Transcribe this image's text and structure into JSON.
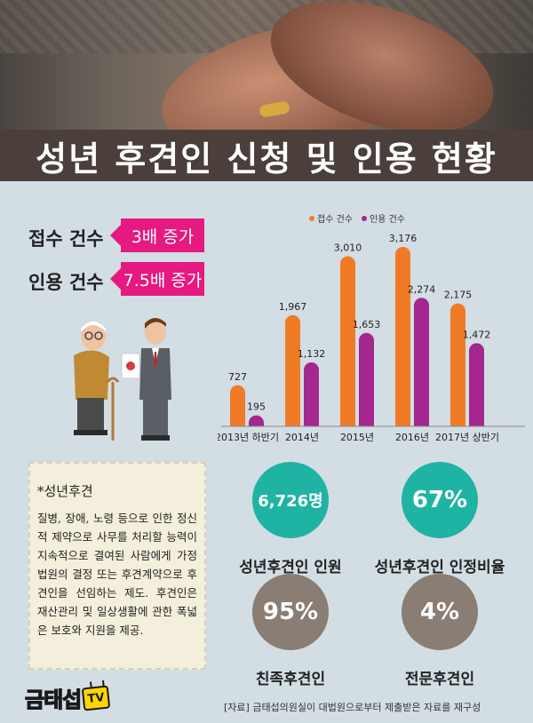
{
  "title": "성년 후견인 신청 및 인용 현황",
  "stats": [
    {
      "label": "접수 건수",
      "value": "3배 증가"
    },
    {
      "label": "인용 건수",
      "value": "7.5배 증가"
    }
  ],
  "colors": {
    "accent": "#e5197f",
    "orange": "#f07b26",
    "purple": "#a3278f",
    "teal": "#1fb3a3",
    "taupe": "#8a7d73",
    "title_bg": "#4a3f3a"
  },
  "chart_data": {
    "type": "bar",
    "categories": [
      "2013년 하반기",
      "2014년",
      "2015년",
      "2016년",
      "2017년 상반기"
    ],
    "series": [
      {
        "name": "접수 건수",
        "values": [
          727,
          1967,
          3010,
          3176,
          2175
        ],
        "labels": [
          "727",
          "1,967",
          "3,010",
          "3,176",
          "2,175"
        ],
        "color": "#f07b26"
      },
      {
        "name": "인용 건수",
        "values": [
          195,
          1132,
          1653,
          2274,
          1472
        ],
        "labels": [
          "195",
          "1,132",
          "1,653",
          "2,274",
          "1,472"
        ],
        "color": "#a3278f"
      }
    ],
    "ylim": [
      0,
      3176
    ],
    "legend": "top"
  },
  "note": {
    "title": "*성년후견",
    "body": "질병, 장애, 노령 등으로 인한 정신적 제약으로 사무를 처리할 능력이 지속적으로 결여된 사람에게 가정법원의 결정 또는 후견계약으로 후견인을 선임하는 제도. 후견인은 재산관리 및 일상생활에 관한 폭넓은 보호와 지원을 제공."
  },
  "circles": [
    {
      "value": "6,726명",
      "label": "성년후견인 인원"
    },
    {
      "value": "67%",
      "label": "성년후견인 인정비율"
    },
    {
      "value": "95%",
      "label": "친족후견인"
    },
    {
      "value": "4%",
      "label": "전문후견인"
    }
  ],
  "logo": {
    "text": "금태섭",
    "badge": "TV"
  },
  "source": "[자료] 금태섭의원실이 대법원으로부터 제출받은 자료를 재구성"
}
